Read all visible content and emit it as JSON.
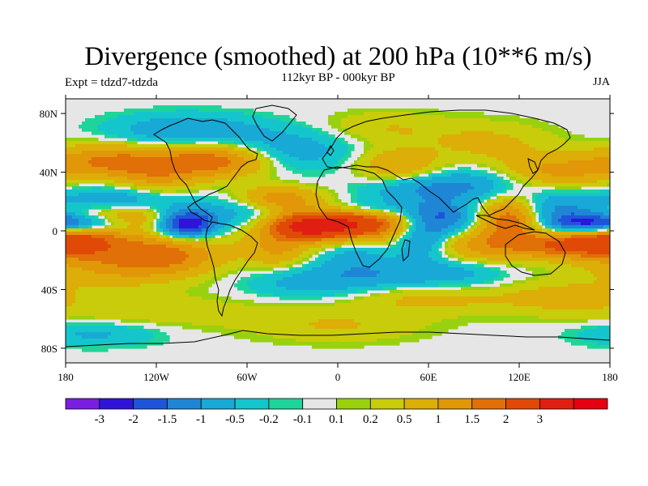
{
  "header": {
    "title": "Divergence (smoothed) at 200 hPa (10**6 m/s)",
    "subtitle": "112kyr BP - 000kyr BP",
    "expt": "Expt = tdzd7-tdzda",
    "season": "JJA"
  },
  "map": {
    "projection": "cylindrical-equidistant",
    "lon_range": [
      -180,
      180
    ],
    "lat_range": [
      -90,
      90
    ],
    "lon_ticks": [
      {
        "value": -180,
        "label": "180"
      },
      {
        "value": -120,
        "label": "120W"
      },
      {
        "value": -60,
        "label": "60W"
      },
      {
        "value": 0,
        "label": "0"
      },
      {
        "value": 60,
        "label": "60E"
      },
      {
        "value": 120,
        "label": "120E"
      },
      {
        "value": 180,
        "label": "180"
      }
    ],
    "lat_ticks": [
      {
        "value": 80,
        "label": "80N"
      },
      {
        "value": 40,
        "label": "40N"
      },
      {
        "value": 0,
        "label": "0"
      },
      {
        "value": -40,
        "label": "40S"
      },
      {
        "value": -80,
        "label": "80S"
      }
    ],
    "background_color": "#e6e6e6",
    "coastline_color": "#000000"
  },
  "colorbar": {
    "colors": [
      "#7a1ee0",
      "#2f14d8",
      "#1e55d8",
      "#1f86d6",
      "#19a9d6",
      "#14c6cc",
      "#1fd49a",
      "#e6e6e6",
      "#99d10f",
      "#c9cc0a",
      "#dcae07",
      "#e19708",
      "#e07007",
      "#e04a06",
      "#e01f12",
      "#e60010"
    ],
    "labels": [
      "-3",
      "-2",
      "-1.5",
      "-1",
      "-0.5",
      "-0.2",
      "-0.1",
      "0.1",
      "0.2",
      "0.5",
      "1",
      "1.5",
      "2",
      "3"
    ]
  },
  "chart_data": {
    "type": "heatmap",
    "title": "Divergence (smoothed) at 200 hPa (10**6 m/s)",
    "subtitle": "112kyr BP - 000kyr BP",
    "season": "JJA",
    "x_range": [
      -180,
      180
    ],
    "y_range": [
      -90,
      90
    ],
    "contour_levels": [
      -3,
      -2,
      -1.5,
      -1,
      -0.5,
      -0.2,
      -0.1,
      0.1,
      0.2,
      0.5,
      1,
      1.5,
      2,
      3
    ],
    "blobs": [
      {
        "lon": 0,
        "lat": 5,
        "rlon": 32,
        "rlat": 8,
        "amp": 3.4
      },
      {
        "lon": -20,
        "lat": 2,
        "rlon": 14,
        "rlat": 5,
        "amp": 1.2
      },
      {
        "lon": -175,
        "lat": -5,
        "rlon": 22,
        "rlat": 9,
        "amp": 2.4
      },
      {
        "lon": -140,
        "lat": 8,
        "rlon": 30,
        "rlat": 6,
        "amp": 1.6
      },
      {
        "lon": -115,
        "lat": -15,
        "rlon": 28,
        "rlat": 10,
        "amp": 1.6
      },
      {
        "lon": -150,
        "lat": -25,
        "rlon": 35,
        "rlat": 10,
        "amp": 0.8
      },
      {
        "lon": -100,
        "lat": 5,
        "rlon": 14,
        "rlat": 7,
        "amp": -3.0
      },
      {
        "lon": -165,
        "lat": 5,
        "rlon": 25,
        "rlat": 5,
        "amp": -2.2
      },
      {
        "lon": -140,
        "lat": 22,
        "rlon": 30,
        "rlat": 7,
        "amp": -1.0
      },
      {
        "lon": -60,
        "lat": 12,
        "rlon": 20,
        "rlat": 8,
        "amp": -0.9
      },
      {
        "lon": -40,
        "lat": 22,
        "rlon": 20,
        "rlat": 6,
        "amp": 1.4
      },
      {
        "lon": -80,
        "lat": 48,
        "rlon": 25,
        "rlat": 8,
        "amp": 1.8
      },
      {
        "lon": -150,
        "lat": 48,
        "rlon": 30,
        "rlat": 8,
        "amp": 1.5
      },
      {
        "lon": -120,
        "lat": 35,
        "rlon": 20,
        "rlat": 10,
        "amp": 1.0
      },
      {
        "lon": -100,
        "lat": 68,
        "rlon": 35,
        "rlat": 8,
        "amp": -1.0
      },
      {
        "lon": -30,
        "lat": 55,
        "rlon": 30,
        "rlat": 10,
        "amp": -0.8
      },
      {
        "lon": 20,
        "lat": 15,
        "rlon": 30,
        "rlat": 5,
        "amp": -1.1
      },
      {
        "lon": 60,
        "lat": 28,
        "rlon": 30,
        "rlat": 6,
        "amp": -0.9
      },
      {
        "lon": 30,
        "lat": -30,
        "rlon": 30,
        "rlat": 8,
        "amp": -0.8
      },
      {
        "lon": 70,
        "lat": 8,
        "rlon": 15,
        "rlat": 8,
        "amp": -1.5
      },
      {
        "lon": 55,
        "lat": -5,
        "rlon": 12,
        "rlat": 10,
        "amp": -1.2
      },
      {
        "lon": 115,
        "lat": 10,
        "rlon": 15,
        "rlat": 10,
        "amp": 2.2
      },
      {
        "lon": 100,
        "lat": -10,
        "rlon": 25,
        "rlat": 8,
        "amp": 1.3
      },
      {
        "lon": 150,
        "lat": -10,
        "rlon": 20,
        "rlat": 6,
        "amp": 1.6
      },
      {
        "lon": 140,
        "lat": 15,
        "rlon": 25,
        "rlat": 8,
        "amp": -1.2
      },
      {
        "lon": 165,
        "lat": 5,
        "rlon": 20,
        "rlat": 5,
        "amp": -1.8
      },
      {
        "lon": 95,
        "lat": 35,
        "rlon": 30,
        "rlat": 8,
        "amp": -0.8
      },
      {
        "lon": 140,
        "lat": 40,
        "rlon": 30,
        "rlat": 8,
        "amp": 1.2
      },
      {
        "lon": 40,
        "lat": 45,
        "rlon": 20,
        "rlat": 8,
        "amp": 1.0
      },
      {
        "lon": 100,
        "lat": 60,
        "rlon": 30,
        "rlat": 10,
        "amp": 0.6
      },
      {
        "lon": 30,
        "lat": 70,
        "rlon": 30,
        "rlat": 8,
        "amp": 0.5
      },
      {
        "lon": 60,
        "lat": -45,
        "rlon": 40,
        "rlat": 8,
        "amp": 0.7
      },
      {
        "lon": 150,
        "lat": -45,
        "rlon": 30,
        "rlat": 8,
        "amp": 0.6
      },
      {
        "lon": -120,
        "lat": -55,
        "rlon": 60,
        "rlat": 8,
        "amp": 0.4
      },
      {
        "lon": -20,
        "lat": -35,
        "rlon": 30,
        "rlat": 8,
        "amp": -0.7
      },
      {
        "lon": 0,
        "lat": -65,
        "rlon": 40,
        "rlat": 8,
        "amp": 0.5
      },
      {
        "lon": -160,
        "lat": -70,
        "rlon": 30,
        "rlat": 6,
        "amp": -0.6
      },
      {
        "lon": -40,
        "lat": -12,
        "rlon": 15,
        "rlat": 10,
        "amp": 1.0
      },
      {
        "lon": 10,
        "lat": -15,
        "rlon": 15,
        "rlat": 8,
        "amp": -0.6
      },
      {
        "lon": 80,
        "lat": -30,
        "rlon": 25,
        "rlat": 8,
        "amp": -0.6
      }
    ]
  }
}
